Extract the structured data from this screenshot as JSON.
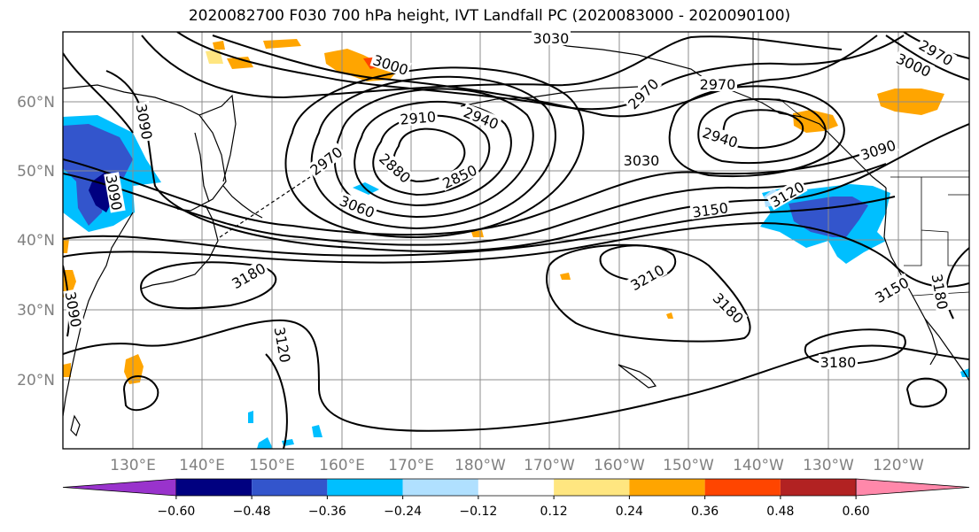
{
  "title": "2020082700 F030 700 hPa height, IVT Landfall PC (2020083000 - 2020090100)",
  "map": {
    "lat_labels": [
      "60°N",
      "50°N",
      "40°N",
      "30°N",
      "20°N"
    ],
    "lon_labels": [
      "130°E",
      "140°E",
      "150°E",
      "160°E",
      "170°E",
      "180°W",
      "170°W",
      "160°W",
      "150°W",
      "140°W",
      "130°W",
      "120°W"
    ],
    "contour_labels": [
      "3030",
      "3000",
      "2970",
      "2910",
      "2940",
      "2880",
      "2850",
      "2970",
      "3060",
      "3030",
      "2940",
      "2970",
      "3000",
      "2970",
      "3090",
      "3120",
      "3150",
      "3090",
      "3180",
      "3210",
      "3180",
      "3120",
      "3180",
      "3150",
      "3180",
      "3090",
      "3090"
    ],
    "colors": {
      "grid": "#8c8c8c",
      "coast": "#000000",
      "contour": "#000000"
    }
  },
  "colorbar": {
    "colors": [
      "#9933cc",
      "#000080",
      "#3355cc",
      "#00bfff",
      "#b0e0ff",
      "#ffffff",
      "#ffe680",
      "#ffa500",
      "#ff4500",
      "#b22222",
      "#ff88aa"
    ],
    "ticks": [
      "−0.60",
      "−0.48",
      "−0.36",
      "−0.24",
      "−0.12",
      "0.12",
      "0.24",
      "0.36",
      "0.48",
      "0.60"
    ]
  }
}
